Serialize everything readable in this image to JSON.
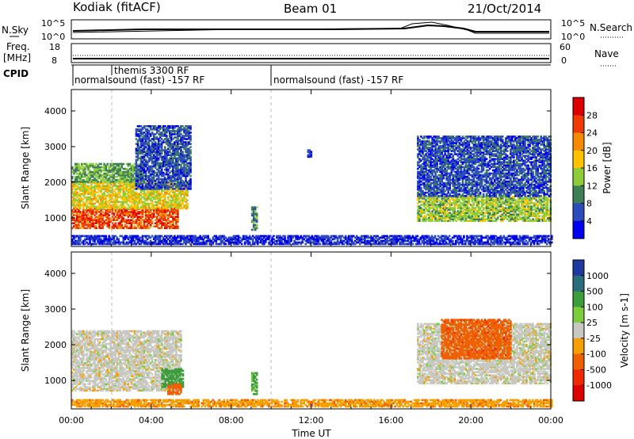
{
  "header": {
    "station": "Kodiak (fitACF)",
    "beam": "Beam 01",
    "date": "21/Oct/2014"
  },
  "param_panels": {
    "nsky": {
      "label": "N.Sky",
      "ticks": [
        "10^5",
        "10^0"
      ]
    },
    "nsearch": {
      "label": "N.Search",
      "ticks": [
        "10^5",
        "10^0"
      ]
    },
    "freq": {
      "label_line1": "Freq.",
      "label_line2": "[MHz]",
      "ticks": [
        "18",
        "8"
      ]
    },
    "nave": {
      "label": "Nave",
      "ticks": [
        "60",
        "0"
      ]
    },
    "cpid": {
      "label": "CPID",
      "entries": [
        {
          "text": "themis 3300 RF"
        },
        {
          "text": "normalsound (fast) -157 RF"
        },
        {
          "text": "normalsound (fast) -157 RF"
        }
      ]
    }
  },
  "chart_data": [
    {
      "type": "heatmap",
      "title": "",
      "xlabel": "",
      "ylabel": "Slant Range [km]",
      "xlim": [
        0,
        24
      ],
      "ylim": [
        200,
        4600
      ],
      "yticks": [
        "4000",
        "3000",
        "2000",
        "1000"
      ],
      "colorbar": {
        "label": "Power [dB]",
        "ticks": [
          "28",
          "24",
          "20",
          "16",
          "12",
          "8",
          "4"
        ],
        "colors": [
          "#dd0000",
          "#f03a00",
          "#f58a00",
          "#ffc200",
          "#8ccd39",
          "#3f7f56",
          "#2c4bbd",
          "#0000ee"
        ]
      },
      "regions": [
        {
          "t": [
            0.0,
            5.3
          ],
          "range": [
            700,
            1250
          ],
          "value": 26
        },
        {
          "t": [
            0.0,
            5.8
          ],
          "range": [
            1250,
            2000
          ],
          "value": 17
        },
        {
          "t": [
            0.0,
            3.6
          ],
          "range": [
            2000,
            2500
          ],
          "value": 12
        },
        {
          "t": [
            3.2,
            6.0
          ],
          "range": [
            1800,
            3600
          ],
          "value": 6
        },
        {
          "t": [
            9.0,
            9.3
          ],
          "range": [
            650,
            1300
          ],
          "value": 10
        },
        {
          "t": [
            11.8,
            12.0
          ],
          "range": [
            2700,
            2900
          ],
          "value": 4
        },
        {
          "t": [
            17.3,
            24.0
          ],
          "range": [
            900,
            1600
          ],
          "value": 14
        },
        {
          "t": [
            17.3,
            24.0
          ],
          "range": [
            1600,
            3300
          ],
          "value": 6
        },
        {
          "t": [
            0.0,
            24.0
          ],
          "range": [
            250,
            500
          ],
          "value": 4
        }
      ]
    },
    {
      "type": "heatmap",
      "title": "",
      "xlabel": "Time UT",
      "ylabel": "Slant Range [km]",
      "xlim": [
        0,
        24
      ],
      "ylim": [
        200,
        4600
      ],
      "xticks": [
        "00:00",
        "04:00",
        "08:00",
        "12:00",
        "16:00",
        "20:00",
        "00:00"
      ],
      "yticks": [
        "4000",
        "3000",
        "2000",
        "1000"
      ],
      "colorbar": {
        "label": "Velocity [m s-1]",
        "ticks": [
          "1000",
          "500",
          "100",
          "25",
          "-25",
          "-100",
          "-500",
          "-1000"
        ],
        "colors": [
          "#1e3a9e",
          "#2a6e7e",
          "#3d9d3d",
          "#7ccc3c",
          "#c8c8c2",
          "#f5a000",
          "#f06000",
          "#f02800",
          "#dd0000"
        ]
      },
      "regions": [
        {
          "t": [
            0.0,
            5.5
          ],
          "range": [
            700,
            2400
          ],
          "value": 0
        },
        {
          "t": [
            4.5,
            5.6
          ],
          "range": [
            800,
            1300
          ],
          "value": 150
        },
        {
          "t": [
            4.8,
            5.5
          ],
          "range": [
            600,
            900
          ],
          "value": -300
        },
        {
          "t": [
            9.0,
            9.3
          ],
          "range": [
            600,
            1200
          ],
          "value": 120
        },
        {
          "t": [
            17.3,
            24.0
          ],
          "range": [
            900,
            2600
          ],
          "value": 0
        },
        {
          "t": [
            18.5,
            22.0
          ],
          "range": [
            1600,
            2700
          ],
          "value": -400
        },
        {
          "t": [
            0.0,
            24.0
          ],
          "range": [
            250,
            450
          ],
          "value": -80
        }
      ]
    }
  ]
}
